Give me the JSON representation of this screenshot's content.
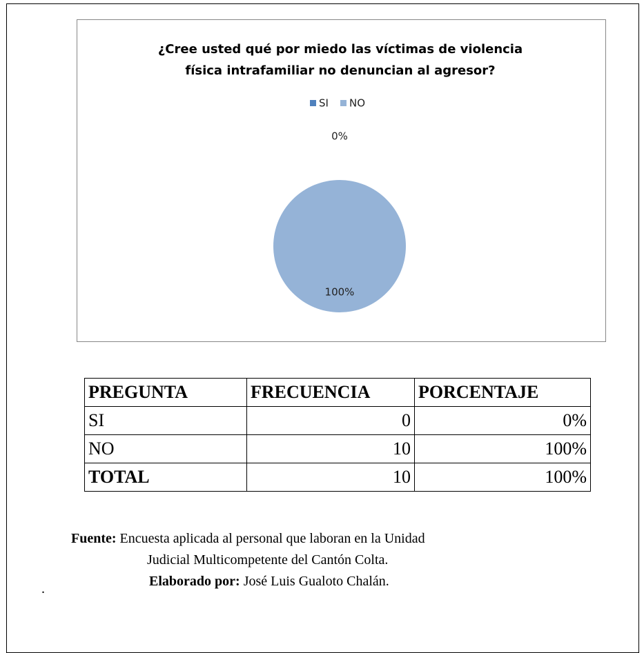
{
  "chart_data": {
    "type": "pie",
    "title": [
      "¿Cree usted qué por miedo las víctimas de violencia",
      "física intrafamiliar no denuncian al agresor?"
    ],
    "categories": [
      "SI",
      "NO"
    ],
    "values": [
      0,
      100
    ],
    "value_labels": [
      "0%",
      "100%"
    ],
    "colors": [
      "#4f81bd",
      "#95b3d7"
    ],
    "legend": "top"
  },
  "table": {
    "header": [
      "PREGUNTA",
      "FRECUENCIA",
      "PORCENTAJE"
    ],
    "rows": [
      [
        "SI",
        "0",
        "0%"
      ],
      [
        "NO",
        "10",
        "100%"
      ],
      [
        "TOTAL",
        "10",
        "100%"
      ]
    ]
  },
  "source": {
    "label": "Fuente:",
    "text": [
      "Encuesta aplicada al personal que laboran en la Unidad",
      "Judicial Multicompetente del Cantón Colta."
    ]
  },
  "author": {
    "label": "Elaborado por:",
    "text": "José Luis Gualoto Chalán."
  },
  "mark": "."
}
